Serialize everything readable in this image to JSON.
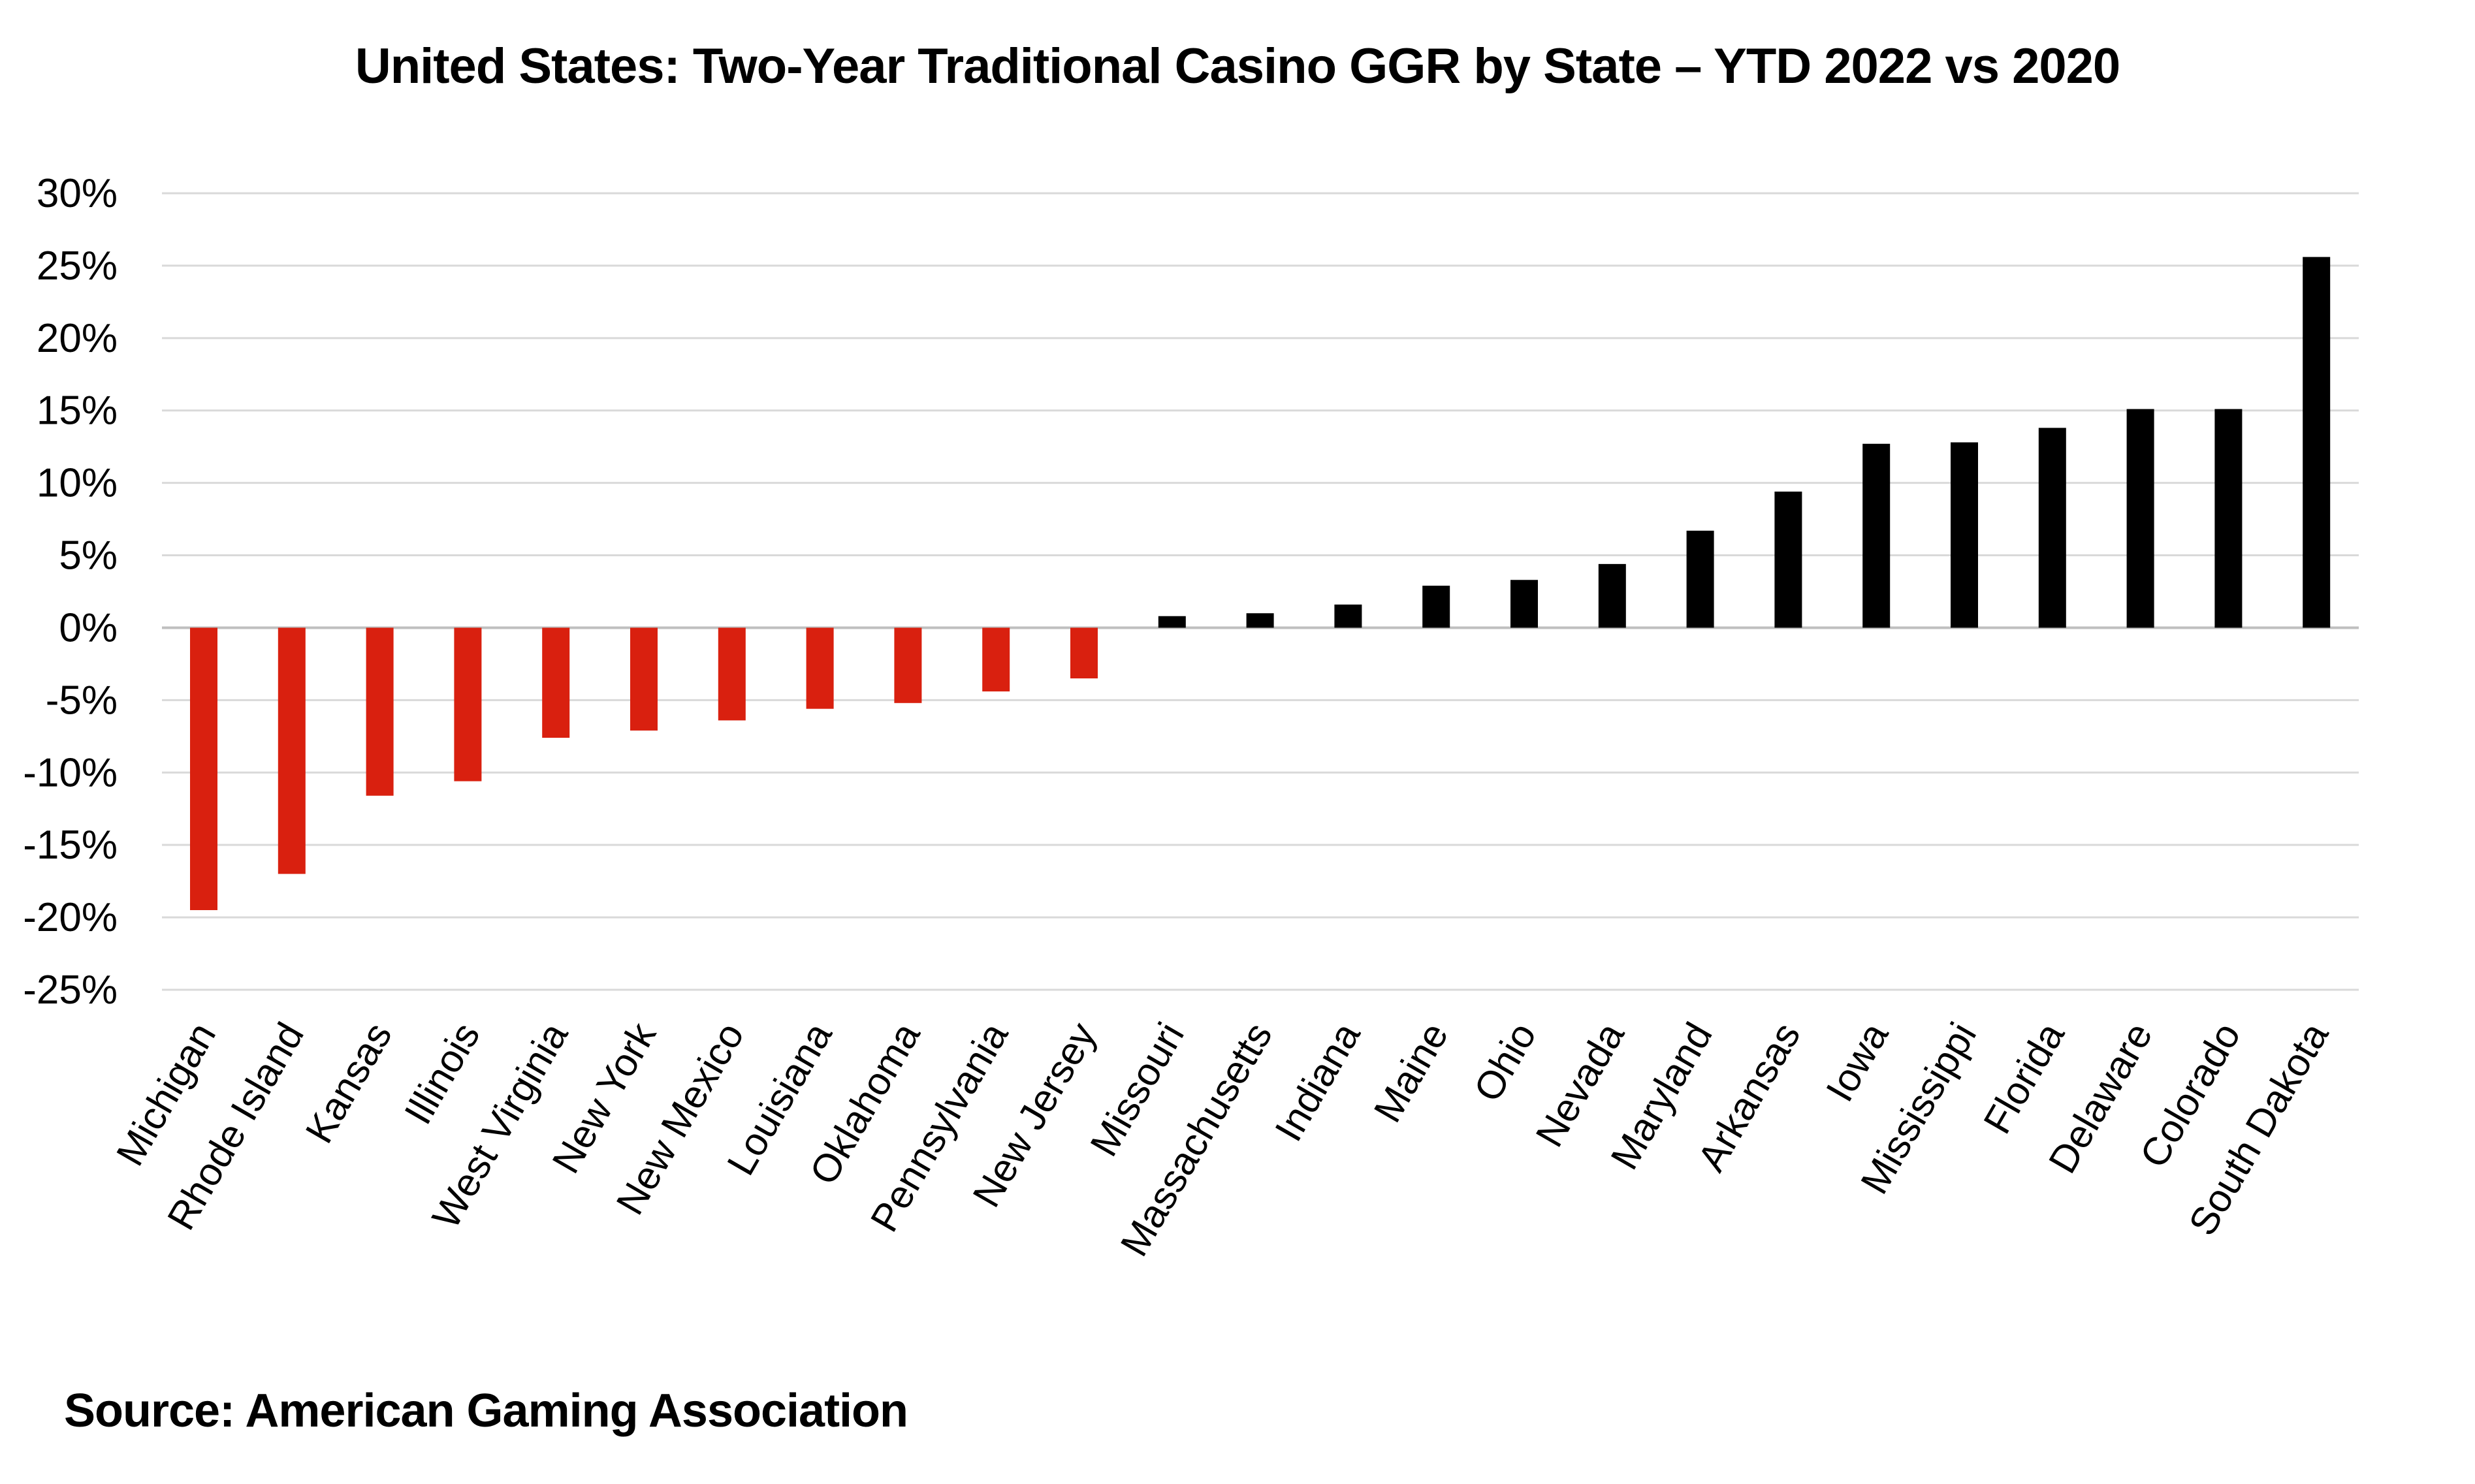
{
  "chart_data": {
    "type": "bar",
    "title": "United States: Two-Year Traditional Casino GGR by State – YTD 2022 vs 2020",
    "xlabel": "",
    "ylabel": "",
    "ylim": [
      -25,
      30
    ],
    "yticks": [
      "30%",
      "25%",
      "20%",
      "15%",
      "10%",
      "5%",
      "0%",
      "-5%",
      "-10%",
      "-15%",
      "-20%",
      "-25%"
    ],
    "ytick_values": [
      30,
      25,
      20,
      15,
      10,
      5,
      0,
      -5,
      -10,
      -15,
      -20,
      -25
    ],
    "grid": true,
    "legend": "none",
    "colors": {
      "negative": "#d9200f",
      "positive": "#000000",
      "grid": "#d9d9d9"
    },
    "categories": [
      "Michigan",
      "Rhode Island",
      "Kansas",
      "Illinois",
      "West Virginia",
      "New York",
      "New Mexico",
      "Louisiana",
      "Oklahoma",
      "Pennsylvania",
      "New Jersey",
      "Missouri",
      "Massachusetts",
      "Indiana",
      "Maine",
      "Ohio",
      "Nevada",
      "Maryland",
      "Arkansas",
      "Iowa",
      "Mississippi",
      "Florida",
      "Delaware",
      "Colorado",
      "South Dakota"
    ],
    "values": [
      -19.5,
      -17.0,
      -11.6,
      -10.6,
      -7.6,
      -7.1,
      -6.4,
      -5.6,
      -5.2,
      -4.4,
      -3.5,
      0.8,
      1.0,
      1.6,
      2.9,
      3.3,
      4.4,
      6.7,
      9.4,
      12.7,
      12.8,
      13.8,
      15.1,
      15.1,
      25.6
    ]
  },
  "source": "Source: American Gaming Association"
}
